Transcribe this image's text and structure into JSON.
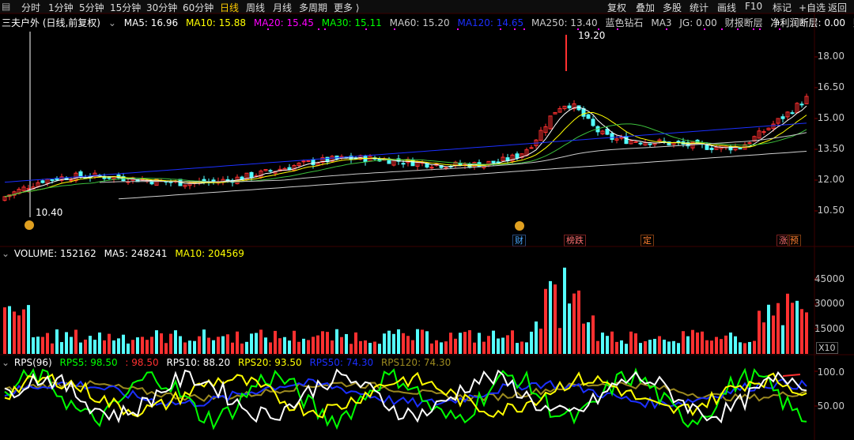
{
  "tabs": [
    "分时",
    "1分钟",
    "5分钟",
    "15分钟",
    "30分钟",
    "60分钟",
    "日线",
    "周线",
    "月线",
    "多周期",
    "更多 ⟩"
  ],
  "active_tab": "日线",
  "right_tools": [
    "复权",
    "叠加",
    "多股",
    "统计",
    "画线",
    "F10",
    "标记",
    "+自选",
    "返回"
  ],
  "colors": {
    "bg": "#000000",
    "up": "#ff3030",
    "down": "#54ffff",
    "ma5": "#ffffff",
    "ma10": "#ffff00",
    "ma20": "#ff00ff",
    "ma30": "#00ff00",
    "ma60": "#c8c8c8",
    "ma120": "#1b2fff",
    "grid": "#3a0000"
  },
  "price_panel": {
    "title": "三夫户外 (日线,前复权)",
    "ma5": "MA5: 16.96",
    "ma10": "MA10: 15.88",
    "ma20": "MA20: 15.45",
    "ma30": "MA30: 15.11",
    "ma60": "MA60: 15.20",
    "ma120": "MA120: 14.65",
    "ma250": "MA250: 13.40",
    "ind1": "蓝色钻石",
    "ind2": "MA3",
    "ind3": "JG: 0.00",
    "ind4": "财报断层",
    "ind5": "净利润断层: 0.00",
    "ind6": "财",
    "high_label": "19.20",
    "low_label": "10.40",
    "y_ticks": [
      "18.00",
      "16.50",
      "15.00",
      "13.50",
      "12.00",
      "10.50"
    ],
    "badges": [
      "财",
      "榜跌",
      "定",
      "涨",
      "预"
    ]
  },
  "volume_panel": {
    "title": "VOLUME: 152162",
    "ma5": "MA5: 248241",
    "ma10": "MA10: 204569",
    "y_ticks": [
      "45000",
      "30000",
      "15000"
    ],
    "unit": "X10"
  },
  "rps_panel": {
    "title": "RPS(96)",
    "rps5": "RPS5: 98.50",
    "rps5b": ": 98.50",
    "rps10": "RPS10: 88.20",
    "rps20": "RPS20: 93.50",
    "rps50": "RPS50: 74.30",
    "rps120": "RPS120: 74.30",
    "y_ticks": [
      "100.0",
      "50.00"
    ]
  }
}
